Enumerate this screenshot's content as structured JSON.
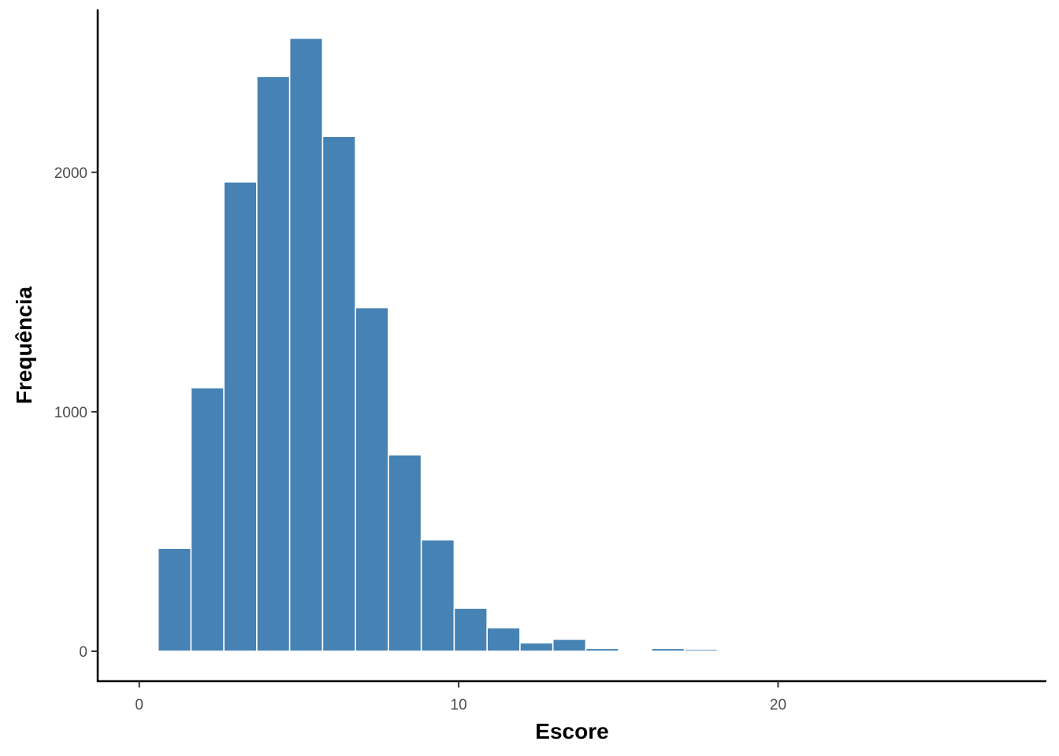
{
  "chart_data": {
    "type": "bar",
    "xlabel": "Escore",
    "ylabel": "Frequência",
    "xlim": [
      -1.3,
      28.4
    ],
    "ylim": [
      -125,
      2680
    ],
    "x_ticks": [
      0,
      10,
      20
    ],
    "y_ticks": [
      0,
      1000,
      2000
    ],
    "bin_width": 1.03,
    "bins": [
      {
        "start": 0.59,
        "count": 430
      },
      {
        "start": 1.62,
        "count": 1100
      },
      {
        "start": 2.65,
        "count": 1960
      },
      {
        "start": 3.68,
        "count": 2400
      },
      {
        "start": 4.71,
        "count": 2560
      },
      {
        "start": 5.74,
        "count": 2150
      },
      {
        "start": 6.77,
        "count": 1435
      },
      {
        "start": 7.8,
        "count": 820
      },
      {
        "start": 8.83,
        "count": 465
      },
      {
        "start": 9.86,
        "count": 180
      },
      {
        "start": 10.89,
        "count": 98
      },
      {
        "start": 11.92,
        "count": 35
      },
      {
        "start": 12.95,
        "count": 50
      },
      {
        "start": 13.98,
        "count": 12
      },
      {
        "start": 15.01,
        "count": 5
      },
      {
        "start": 16.04,
        "count": 12
      },
      {
        "start": 17.07,
        "count": 8
      }
    ],
    "bar_color": "#4682b4",
    "bar_edge_color": "#ffffff",
    "grid": false,
    "legend": "none"
  }
}
